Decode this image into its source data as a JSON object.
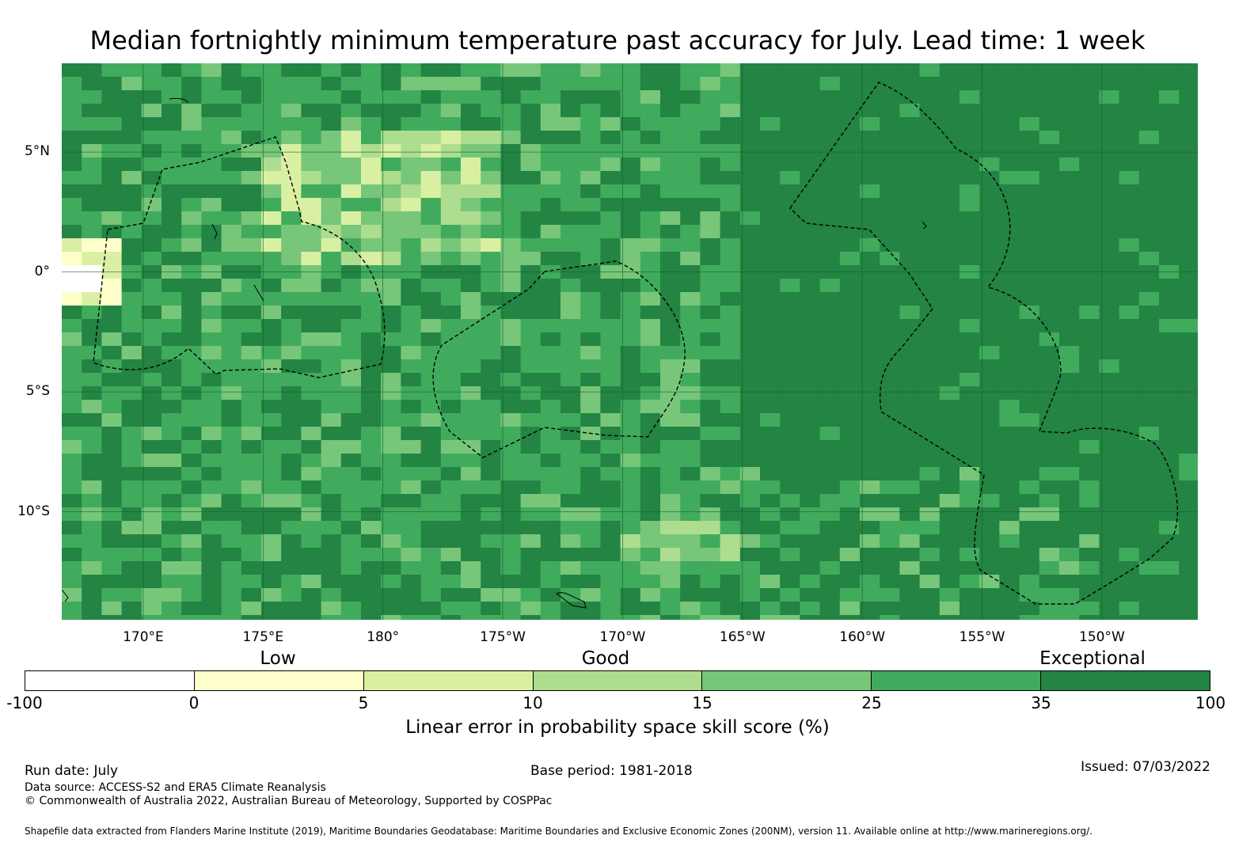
{
  "title": "Median fortnightly minimum temperature past accuracy for July. Lead time: 1 week",
  "map": {
    "lat_labels": [
      {
        "label": "5°N",
        "lat": 5
      },
      {
        "label": "0°",
        "lat": 0
      },
      {
        "label": "5°S",
        "lat": -5
      },
      {
        "label": "10°S",
        "lat": -10
      }
    ],
    "lon_labels": [
      {
        "label": "170°E",
        "lon": 170
      },
      {
        "label": "175°E",
        "lon": 175
      },
      {
        "label": "180°",
        "lon": 180
      },
      {
        "label": "175°W",
        "lon": 185
      },
      {
        "label": "170°W",
        "lon": 190
      },
      {
        "label": "165°W",
        "lon": 195
      },
      {
        "label": "160°W",
        "lon": 200
      },
      {
        "label": "155°W",
        "lon": 205
      },
      {
        "label": "150°W",
        "lon": 210
      }
    ],
    "extent": {
      "lon_min": 166.6,
      "lon_max": 214.0,
      "lat_min": -14.5,
      "lat_max": 8.7
    },
    "levels": [
      {
        "range": "-100 to 0",
        "color": "#ffffff"
      },
      {
        "range": "0 to 5",
        "color": "#ffffcc"
      },
      {
        "range": "5 to 10",
        "color": "#d9f0a3"
      },
      {
        "range": "10 to 15",
        "color": "#addd8e"
      },
      {
        "range": "15 to 25",
        "color": "#78c679"
      },
      {
        "range": "25 to 35",
        "color": "#41ab5d"
      },
      {
        "range": "35 to 100",
        "color": "#238443"
      }
    ]
  },
  "categories": [
    "Low",
    "Good",
    "Exceptional"
  ],
  "colorbar": {
    "ticks": [
      "-100",
      "0",
      "5",
      "10",
      "15",
      "25",
      "35",
      "100"
    ],
    "colors": [
      "#ffffff",
      "#ffffcc",
      "#d9f0a3",
      "#addd8e",
      "#78c679",
      "#41ab5d",
      "#238443"
    ],
    "label": "Linear error in probability space skill score (%)"
  },
  "footer": {
    "run_date": "Run date: July",
    "base_period": "Base period: 1981-2018",
    "issued": "Issued: 07/03/2022",
    "data_source": "Data source: ACCESS-S2 and ERA5 Climate Reanalysis",
    "copyright": "© Commonwealth of Australia 2022, Australian Bureau of Meteorology, Supported by COSPPac",
    "shapefile": "Shapefile data extracted from Flanders Marine Institute (2019), Maritime Boundaries Geodatabase: Maritime Boundaries and Exclusive Economic Zones (200NM), version 11. Available online at http://www.marineregions.org/."
  }
}
